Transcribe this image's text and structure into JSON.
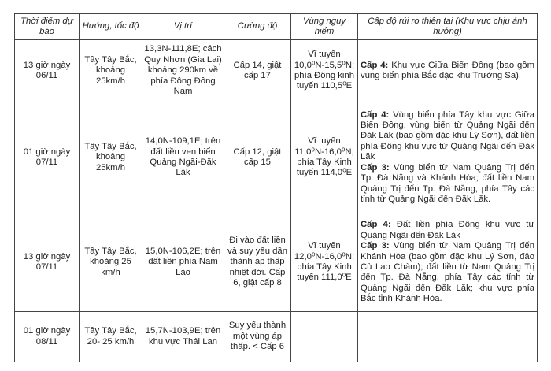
{
  "headers": [
    "Thời điểm dự báo",
    "Hướng, tốc độ",
    "Vị trí",
    "Cường độ",
    "Vùng nguy hiểm",
    "Cấp độ rủi ro thiên tai (Khu vực chịu ảnh hưởng)"
  ],
  "rows": [
    {
      "time": "13 giờ ngày 06/11",
      "direction": "Tây Tây Bắc, khoảng 25km/h",
      "position": "13,3N-111,8E; cách Quy Nhơn (Gia Lai) khoảng 290km về phía Đông Đông Nam",
      "intensity": "Cấp 14, giật cấp 17",
      "danger": "Vĩ tuyến 10,0⁰N-15,5⁰N; phía Đông kinh tuyến 110,5⁰E",
      "risk": [
        {
          "level": "Cấp 4:",
          "text": " Khu vực Giữa Biển Đông (bao gồm vùng biển phía Bắc đặc khu Trường Sa)."
        }
      ]
    },
    {
      "time": "01 giờ ngày 07/11",
      "direction": "Tây Tây Bắc, khoảng 25km/h",
      "position": "14,0N-109,1E; trên đất liền ven biển Quảng Ngãi-Đăk Lăk",
      "intensity": "Cấp 12, giật cấp 15",
      "danger": "Vĩ tuyến 11,0⁰N-16,0⁰N; phía Tây Kinh tuyến 114,0⁰E",
      "risk": [
        {
          "level": "Cấp 4:",
          "text": " Vùng biển phía Tây khu vực Giữa Biển Đông, vùng biển từ Quảng Ngãi đến Đăk Lăk (bao gồm đặc khu Lý Sơn), đất liền phía Đông khu vực từ Quảng Ngãi đến Đăk Lăk"
        },
        {
          "level": "Cấp 3:",
          "text": " Vùng biển từ Nam Quảng Trị đến Tp. Đà Nẵng và Khánh Hòa; đất liền Nam Quảng Trị đến Tp. Đà Nẵng, phía Tây các tỉnh từ Quảng Ngãi đến Đăk Lăk."
        }
      ]
    },
    {
      "time": "13 giờ ngày 07/11",
      "direction": "Tây Tây Bắc, khoảng 25 km/h",
      "position": "15,0N-106,2E; trên đất liền phía Nam Lào",
      "intensity": "Đi vào đất liền và suy yếu dần thành áp thấp nhiệt đới. Cấp 6, giật cấp 8",
      "danger": "Vĩ tuyến 12,0⁰N-16,0⁰N; phía Tây Kinh tuyến 111,0⁰E",
      "risk": [
        {
          "level": "Cấp 4:",
          "text": " Đất liền phía Đông khu vực từ Quảng Ngãi đến Đăk Lăk"
        },
        {
          "level": "Cấp 3:",
          "text": " Vùng biển từ Nam Quảng Trị đến Khánh Hòa (bao gồm đặc khu Lý Sơn, đảo Cù Lao Chàm); đất liền từ Nam Quảng Trị đến Tp. Đà Nẵng, phía Tây các tỉnh từ Quảng Ngãi đến Đăk Lăk; khu vực phía Bắc tỉnh Khánh Hòa."
        }
      ]
    },
    {
      "time": "01 giờ ngày 08/11",
      "direction": "Tây Tây Bắc, 20- 25 km/h",
      "position": "15,7N-103,9E; trên khu vực Thái Lan",
      "intensity": "Suy yếu thành một vùng áp thấp. < Cấp 6",
      "danger": "",
      "risk": []
    }
  ]
}
